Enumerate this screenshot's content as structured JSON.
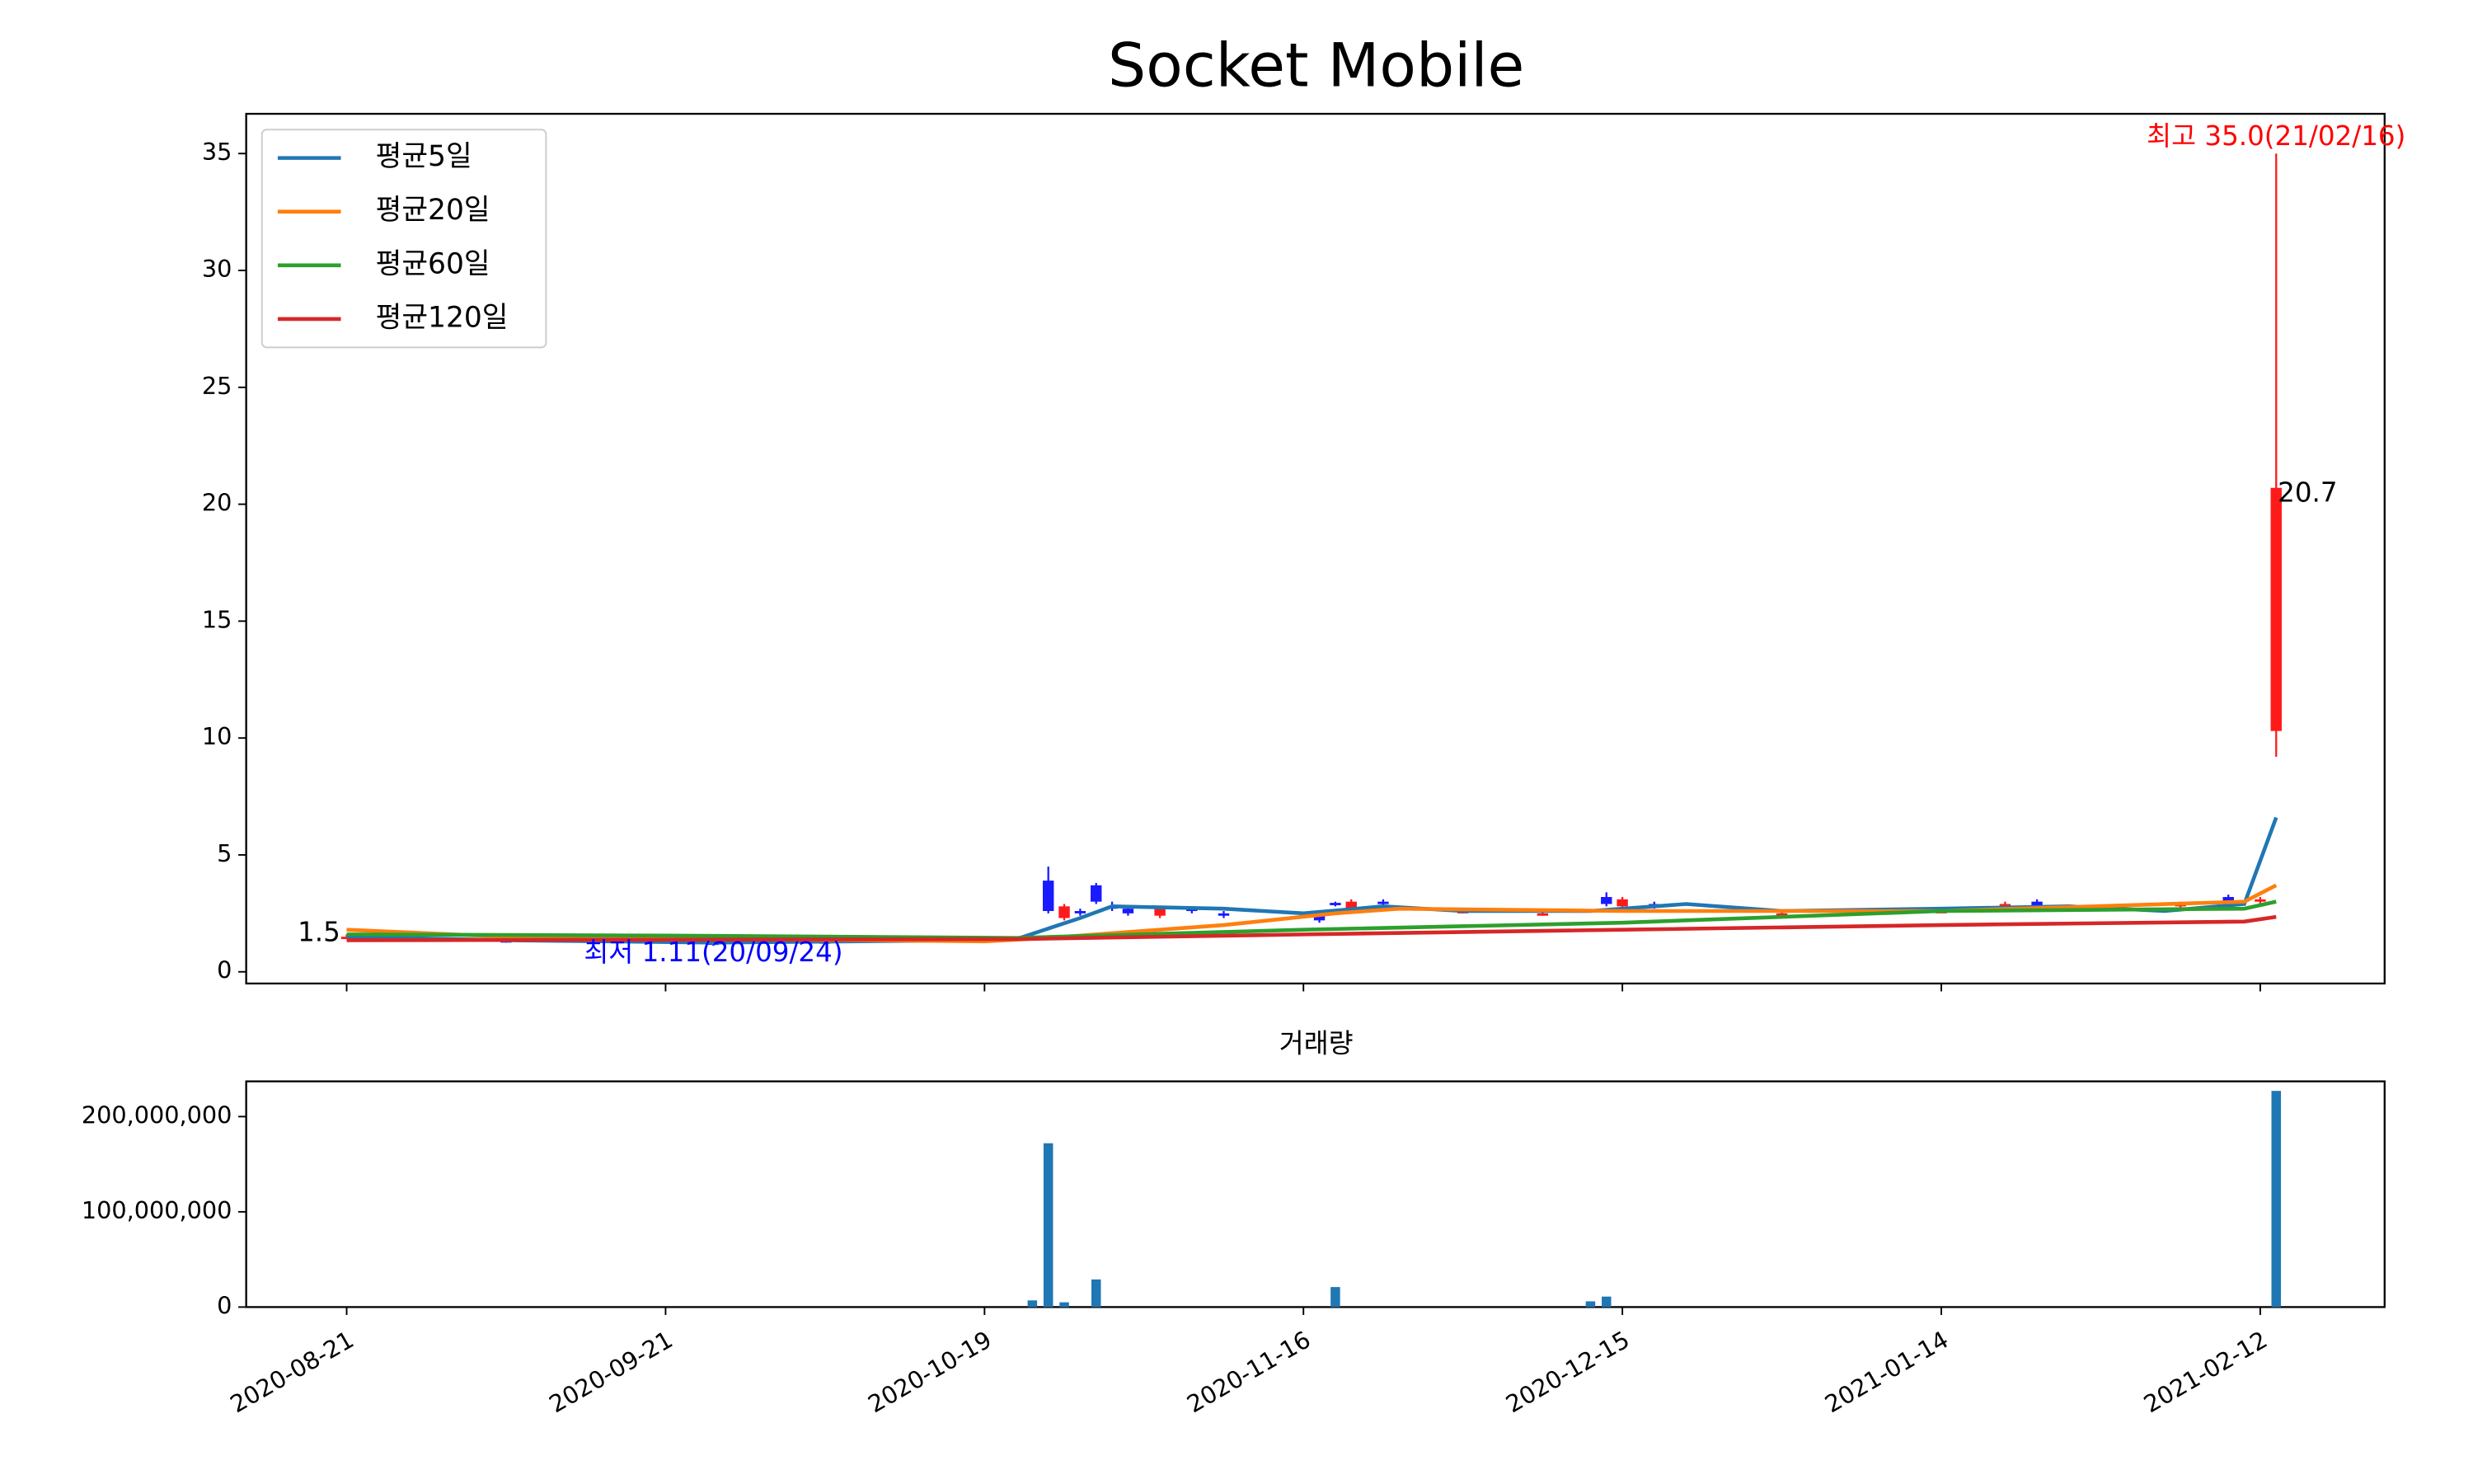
{
  "chart_data": [
    {
      "type": "candlestick",
      "title": "Socket Mobile",
      "xlim": [
        -6.3,
        127.8
      ],
      "xticks": [
        0,
        20,
        40,
        60,
        80,
        100,
        120
      ],
      "ylim": [
        -0.5,
        36.7
      ],
      "yticks": [
        0,
        5,
        10,
        15,
        20,
        25,
        30,
        35
      ],
      "up_color": "#ff1a1a",
      "down_color": "#1a1aff",
      "candles": {
        "x": [
          0,
          5,
          10,
          23,
          30,
          40,
          44,
          45,
          46,
          47,
          48,
          49,
          51,
          53,
          55,
          61,
          62,
          63,
          65,
          70,
          75,
          79,
          80,
          82,
          90,
          100,
          104,
          106,
          110,
          115,
          118,
          120,
          121
        ],
        "open": [
          1.5,
          1.4,
          1.35,
          1.25,
          1.3,
          1.35,
          3.9,
          2.3,
          2.6,
          3.7,
          2.8,
          2.7,
          2.4,
          2.7,
          2.5,
          2.4,
          2.95,
          2.7,
          3.0,
          2.6,
          2.5,
          3.2,
          2.8,
          2.9,
          2.5,
          2.6,
          2.8,
          3.0,
          2.7,
          2.8,
          3.2,
          3.0,
          10.3
        ],
        "high": [
          1.6,
          1.45,
          1.4,
          1.3,
          1.35,
          1.4,
          4.5,
          2.9,
          2.7,
          3.8,
          3.0,
          2.8,
          2.8,
          2.8,
          2.6,
          2.6,
          3.0,
          3.1,
          3.1,
          2.7,
          2.6,
          3.4,
          3.2,
          3.0,
          2.6,
          2.7,
          3.0,
          3.1,
          2.8,
          3.0,
          3.3,
          3.2,
          35.0
        ],
        "low": [
          1.4,
          1.3,
          1.25,
          1.11,
          1.25,
          1.3,
          2.5,
          2.2,
          2.4,
          2.9,
          2.6,
          2.4,
          2.3,
          2.5,
          2.3,
          2.1,
          2.8,
          2.6,
          2.8,
          2.5,
          2.4,
          2.8,
          2.7,
          2.7,
          2.4,
          2.5,
          2.7,
          2.7,
          2.6,
          2.7,
          2.9,
          2.9,
          9.2
        ],
        "close": [
          1.5,
          1.35,
          1.3,
          1.2,
          1.3,
          1.35,
          2.6,
          2.8,
          2.5,
          3.0,
          2.7,
          2.5,
          2.7,
          2.6,
          2.4,
          2.2,
          2.85,
          3.0,
          2.9,
          2.6,
          2.5,
          2.9,
          3.1,
          2.8,
          2.5,
          2.6,
          2.9,
          2.8,
          2.7,
          2.9,
          3.0,
          3.1,
          20.7
        ]
      },
      "series": [
        {
          "name": "평균5일",
          "color": "#1f77b4",
          "x": [
            0,
            10,
            23,
            40,
            42,
            46,
            48,
            55,
            60,
            65,
            70,
            78,
            84,
            90,
            100,
            108,
            114,
            119,
            121
          ],
          "values": [
            1.5,
            1.35,
            1.25,
            1.35,
            1.4,
            2.3,
            2.8,
            2.7,
            2.5,
            2.8,
            2.6,
            2.6,
            2.9,
            2.6,
            2.7,
            2.8,
            2.6,
            2.9,
            6.6
          ]
        },
        {
          "name": "평균20일",
          "color": "#ff7f0e",
          "x": [
            0,
            10,
            40,
            44,
            55,
            62,
            66,
            80,
            100,
            119,
            121
          ],
          "values": [
            1.8,
            1.5,
            1.3,
            1.45,
            2.0,
            2.5,
            2.7,
            2.6,
            2.6,
            3.0,
            3.7
          ]
        },
        {
          "name": "평균60일",
          "color": "#2ca02c",
          "x": [
            0,
            20,
            42,
            60,
            80,
            100,
            119,
            121
          ],
          "values": [
            1.6,
            1.55,
            1.45,
            1.8,
            2.1,
            2.6,
            2.7,
            3.0
          ]
        },
        {
          "name": "평균120일",
          "color": "#d62728",
          "x": [
            0,
            42,
            60,
            80,
            100,
            119,
            121
          ],
          "values": [
            1.35,
            1.4,
            1.6,
            1.8,
            2.0,
            2.15,
            2.35
          ]
        }
      ],
      "legend": "upper left",
      "annotations": [
        {
          "text": "최고 35.0(21/02/16)",
          "x": 121,
          "y": 35.0,
          "color": "red",
          "anchor": "above"
        },
        {
          "text": "최저 1.11(20/09/24)",
          "x": 23,
          "y": 1.11,
          "color": "blue",
          "anchor": "below"
        },
        {
          "text": "1.5",
          "x": 0,
          "y": 1.5,
          "color": "black",
          "anchor": "left"
        },
        {
          "text": "20.7",
          "x": 121,
          "y": 20.7,
          "color": "black",
          "anchor": "right"
        }
      ]
    },
    {
      "type": "bar",
      "title": "거래량",
      "color": "#1f77b4",
      "x": [
        43,
        44,
        45,
        47,
        62,
        78,
        79,
        121
      ],
      "values": [
        7000000,
        172000000,
        5000000,
        29000000,
        21000000,
        6000000,
        11000000,
        227000000
      ],
      "xlim": [
        -6.3,
        127.8
      ],
      "xticks": [
        {
          "value": 0,
          "label": "2020-08-21"
        },
        {
          "value": 20,
          "label": "2020-09-21"
        },
        {
          "value": 40,
          "label": "2020-10-19"
        },
        {
          "value": 60,
          "label": "2020-11-16"
        },
        {
          "value": 80,
          "label": "2020-12-15"
        },
        {
          "value": 100,
          "label": "2021-01-14"
        },
        {
          "value": 120,
          "label": "2021-02-12"
        }
      ],
      "ylim": [
        0,
        237000000
      ],
      "yticks": [
        0,
        {
          "value": 100000000,
          "label": "100,000,000"
        },
        {
          "value": 200000000,
          "label": "200,000,000"
        }
      ]
    }
  ]
}
